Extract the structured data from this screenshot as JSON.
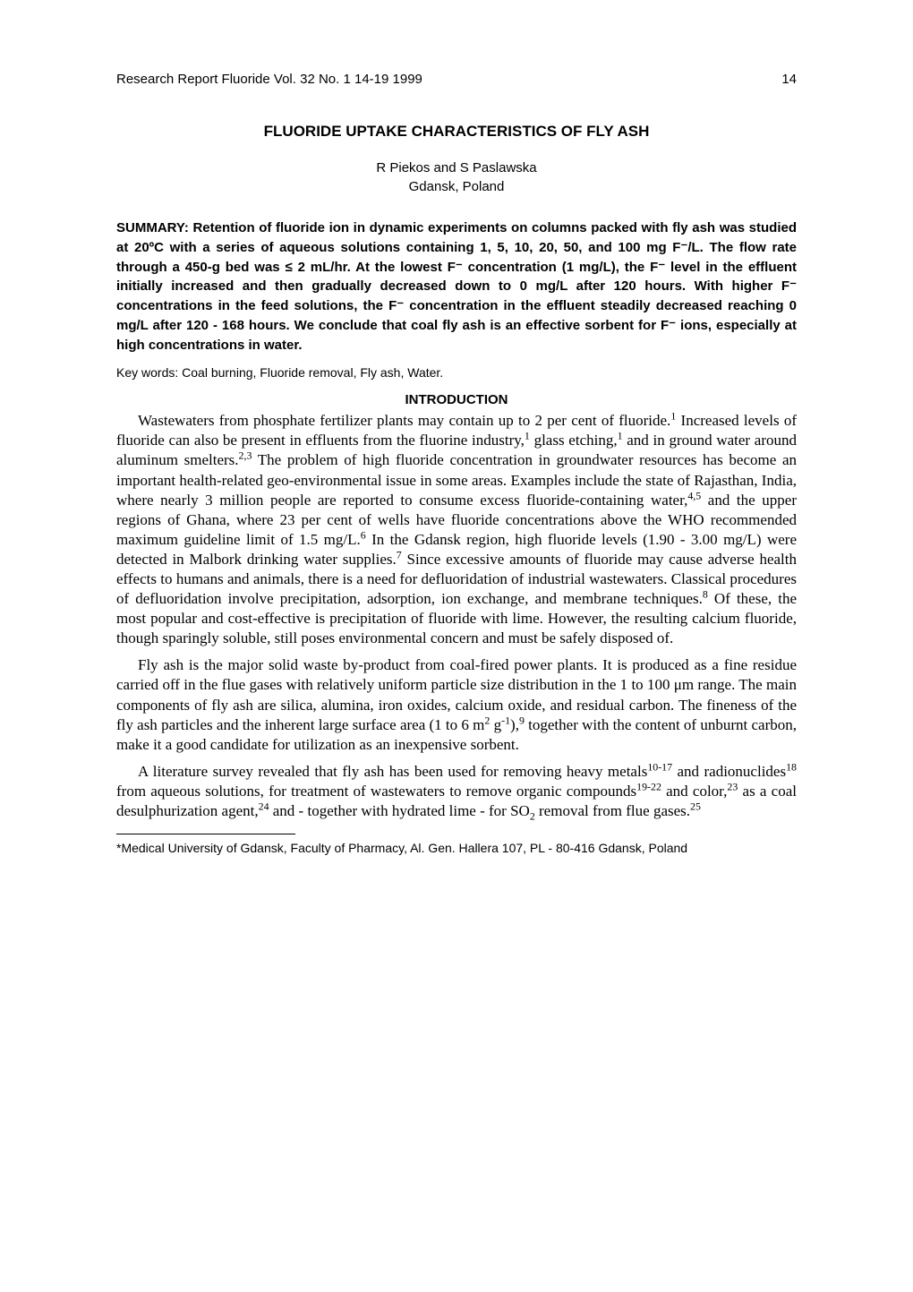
{
  "header": {
    "journal": "Research Report    Fluoride Vol. 32 No. 1  14-19  1999",
    "page": "14"
  },
  "title": "FLUORIDE UPTAKE CHARACTERISTICS OF FLY ASH",
  "authors": {
    "names": "R Piekos and S Paslawska",
    "affiliation": "Gdansk, Poland"
  },
  "summary_label": "SUMMARY: ",
  "summary_text": "Retention of fluoride ion in dynamic experiments on columns packed with fly ash was studied at 20ºC with a series of aqueous solutions containing 1, 5, 10, 20, 50, and 100 mg F⁻/L. The flow rate through a 450-g bed was ≤ 2 mL/hr. At the lowest F⁻ concentration (1 mg/L), the F⁻ level in the effluent initially increased and then gradually decreased down to 0 mg/L after 120 hours. With higher F⁻ concentrations in the feed solutions, the F⁻ concentration in the effluent steadily decreased reaching 0 mg/L after 120 - 168 hours. We conclude that coal fly ash is an effective sorbent for F⁻ ions, especially at high concentrations in water.",
  "keywords": "Key words: Coal burning, Fluoride removal, Fly ash, Water.",
  "section_heading": "INTRODUCTION",
  "paragraphs": {
    "p1_a": "Wastewaters from phosphate fertilizer plants may contain up to 2 per cent of fluoride.",
    "p1_b": " Increased levels of fluoride can also be present in effluents from the fluorine industry,",
    "p1_c": " glass etching,",
    "p1_d": " and in ground water around aluminum smelters.",
    "p1_e": " The problem of high fluoride concentration in groundwater resources has become an important health-related geo-environmental issue in some areas. Examples include the state of Rajasthan, India, where nearly 3 million people are reported to consume excess fluoride-containing water,",
    "p1_f": " and the upper regions of Ghana, where 23 per cent of wells have fluoride concentrations above the WHO recommended maximum guideline limit of 1.5 mg/L.",
    "p1_g": " In the Gdansk region, high fluoride levels (1.90 - 3.00 mg/L) were detected in Malbork drinking water supplies.",
    "p1_h": " Since excessive amounts of fluoride may cause adverse health effects to humans and animals, there is a need for defluoridation of industrial wastewaters. Classical procedures of defluoridation involve precipitation, adsorption, ion exchange, and membrane techniques.",
    "p1_i": " Of these, the most popular and cost-effective is precipitation of fluoride with lime. However, the resulting calcium fluoride, though sparingly soluble, still poses environmental concern and must be safely disposed of.",
    "p2_a": "Fly ash is the major solid waste by-product from coal-fired power plants. It is produced as a fine residue carried off in the flue gases with relatively uniform particle size distribution in the 1 to 100 μm range. The main components of fly ash are silica, alumina, iron oxides, calcium oxide, and residual carbon. The fineness of the fly ash particles and the inherent large surface area (1 to 6 m",
    "p2_b": " g",
    "p2_c": "),",
    "p2_d": " together with the content of unburnt carbon, make it a good candidate for utilization as an inexpensive sorbent.",
    "p3_a": "A literature survey revealed that fly ash has been used for removing heavy metals",
    "p3_b": " and radionuclides",
    "p3_c": " from aqueous solutions, for treatment of wastewaters to remove organic compounds",
    "p3_d": " and color,",
    "p3_e": " as a coal desulphurization agent,",
    "p3_f": " and - together with hydrated lime - for SO",
    "p3_g": " removal from flue gases."
  },
  "refs": {
    "r1": "1",
    "r2_3": "2,3",
    "r4_5": "4,5",
    "r6": "6",
    "r7": "7",
    "r8": "8",
    "r9": "9",
    "r10_17": "10-17",
    "r18": "18",
    "r19_22": "19-22",
    "r23": "23",
    "r24": "24",
    "r25": "25",
    "sup2": "2",
    "supm1": "-1",
    "sub2": "2"
  },
  "footnote": "*Medical University of Gdansk, Faculty of Pharmacy, Al. Gen. Hallera 107, PL - 80-416 Gdansk, Poland"
}
